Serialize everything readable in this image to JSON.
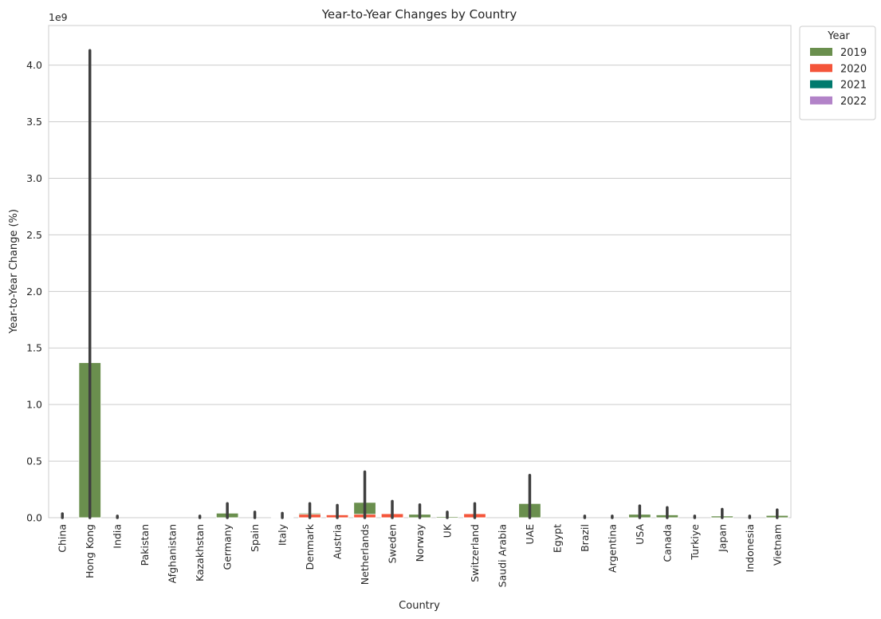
{
  "chart_data": {
    "type": "bar",
    "title": "Year-to-Year Changes by Country",
    "xlabel": "Country",
    "ylabel": "Year-to-Year Change (%)",
    "y_scale_label": "1e9",
    "y_tick_scale": 1000000000,
    "ylim": [
      0,
      4350000000
    ],
    "yticks": [
      0,
      500000000,
      1000000000,
      1500000000,
      2000000000,
      2500000000,
      3000000000,
      3500000000,
      4000000000
    ],
    "ytick_labels": [
      "0.0",
      "0.5",
      "1.0",
      "1.5",
      "2.0",
      "2.5",
      "3.0",
      "3.5",
      "4.0"
    ],
    "grid": true,
    "legend": {
      "title": "Year",
      "placement": "outside-top-right"
    },
    "categories": [
      "China",
      "Hong Kong",
      "India",
      "Pakistan",
      "Afghanistan",
      "Kazakhstan",
      "Germany",
      "Spain",
      "Italy",
      "Denmark",
      "Austria",
      "Netherlands",
      "Sweden",
      "Norway",
      "UK",
      "Switzerland",
      "Saudi Arabia",
      "UAE",
      "Egypt",
      "Brazil",
      "Argentina",
      "USA",
      "Canada",
      "Turkiye",
      "Japan",
      "Indonesia",
      "Vietnam"
    ],
    "series": [
      {
        "name": "2019",
        "color": "#6a8f4e",
        "values": [
          0,
          1370000000,
          0,
          0,
          0,
          0,
          40000000,
          0,
          5000000,
          40000000,
          30000000,
          135000000,
          10000000,
          30000000,
          10000000,
          10000000,
          0,
          125000000,
          0,
          0,
          0,
          30000000,
          25000000,
          0,
          15000000,
          0,
          20000000
        ],
        "error_high": [
          35000000,
          4130000000,
          15000000,
          0,
          0,
          15000000,
          125000000,
          50000000,
          40000000,
          125000000,
          110000000,
          405000000,
          145000000,
          115000000,
          50000000,
          125000000,
          0,
          375000000,
          0,
          15000000,
          15000000,
          105000000,
          90000000,
          15000000,
          75000000,
          15000000,
          70000000
        ]
      },
      {
        "name": "2020",
        "color": "#f4553a",
        "values": [
          0,
          0,
          0,
          0,
          0,
          0,
          0,
          0,
          0,
          30000000,
          25000000,
          30000000,
          35000000,
          0,
          0,
          35000000,
          0,
          0,
          0,
          0,
          0,
          0,
          0,
          0,
          0,
          0,
          0
        ]
      },
      {
        "name": "2021",
        "color": "#007a6e",
        "values": [
          0,
          0,
          0,
          0,
          0,
          0,
          0,
          0,
          0,
          0,
          0,
          0,
          0,
          0,
          0,
          0,
          0,
          0,
          0,
          0,
          0,
          0,
          0,
          0,
          0,
          0,
          0
        ]
      },
      {
        "name": "2022",
        "color": "#b283c8",
        "values": [
          0,
          0,
          0,
          0,
          0,
          0,
          0,
          0,
          0,
          0,
          0,
          0,
          0,
          0,
          0,
          0,
          0,
          0,
          0,
          0,
          0,
          0,
          0,
          0,
          0,
          0,
          0
        ]
      }
    ]
  }
}
